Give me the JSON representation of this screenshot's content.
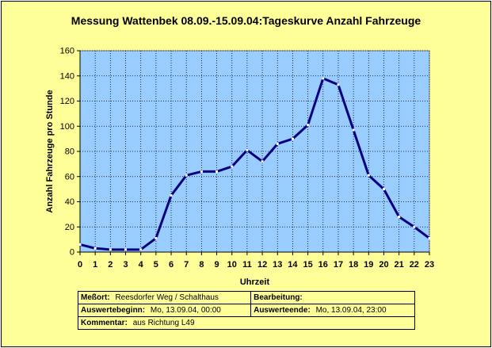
{
  "chart_data": {
    "type": "line",
    "title": "Messung Wattenbek 08.09.-15.09.04:Tageskurve Anzahl Fahrzeuge",
    "xlabel": "Uhrzeit",
    "ylabel": "Anzahl Fahrzeuge pro Stunde",
    "x": [
      0,
      1,
      2,
      3,
      4,
      5,
      6,
      7,
      8,
      9,
      10,
      11,
      12,
      13,
      14,
      15,
      16,
      17,
      18,
      19,
      20,
      21,
      22,
      23
    ],
    "values": [
      6,
      3,
      2,
      2,
      2,
      11,
      45,
      61,
      64,
      64,
      68,
      81,
      72,
      86,
      90,
      101,
      138,
      133,
      97,
      61,
      50,
      28,
      20,
      11
    ],
    "ylim": [
      0,
      160
    ],
    "yticks": [
      0,
      20,
      40,
      60,
      80,
      100,
      120,
      140,
      160
    ],
    "grid": true,
    "colors": {
      "line": "#000080",
      "marker": "#ffffff",
      "plot_bg": "#99ccff",
      "chart_bg": "#ffff99",
      "grid": "#000000"
    }
  },
  "info": {
    "messort_label": "Meßort:",
    "messort_value": "Reesdorfer Weg / Schalthaus",
    "bearbeitung_label": "Bearbeitung:",
    "bearbeitung_value": "",
    "beginn_label": "Auswertebeginn:",
    "beginn_value": "Mo, 13.09.04, 00:00",
    "ende_label": "Auswerteende:",
    "ende_value": "Mo, 13.09.04, 23:00",
    "kommentar_label": "Kommentar:",
    "kommentar_value": "aus Richtung L49"
  }
}
